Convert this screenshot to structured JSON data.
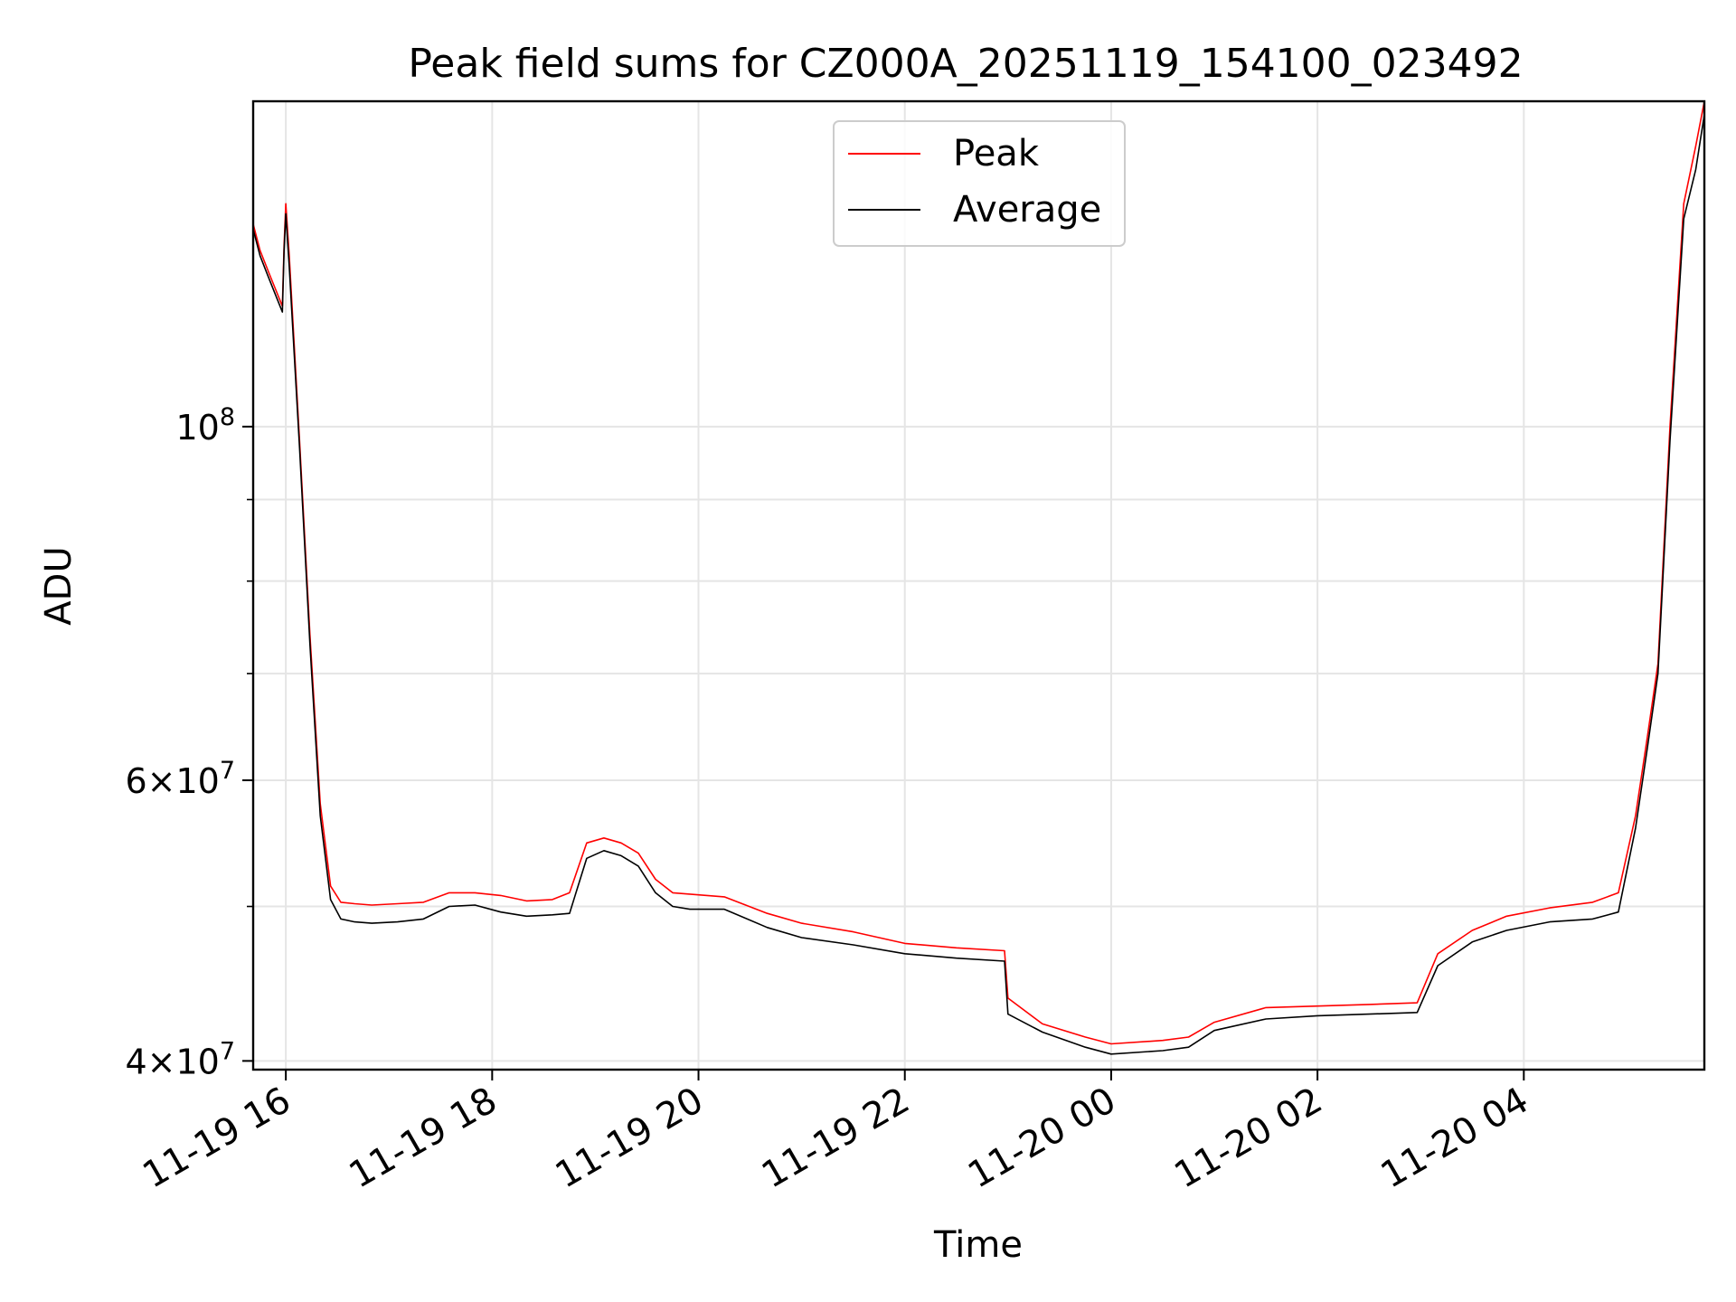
{
  "chart_data": {
    "type": "line",
    "title": "Peak field sums for CZ000A_20251119_154100_023492",
    "xlabel": "Time",
    "ylabel": "ADU",
    "y_scale": "log",
    "ylim": [
      39500000,
      160000000
    ],
    "xlim": [
      "2025-11-19 15:41",
      "2025-11-20 05:45"
    ],
    "grid": true,
    "legend_position": "upper center",
    "x_ticks": [
      {
        "t": "2025-11-19 16:00",
        "label": "11-19 16"
      },
      {
        "t": "2025-11-19 18:00",
        "label": "11-19 18"
      },
      {
        "t": "2025-11-19 20:00",
        "label": "11-19 20"
      },
      {
        "t": "2025-11-19 22:00",
        "label": "11-19 22"
      },
      {
        "t": "2025-11-20 00:00",
        "label": "11-20 00"
      },
      {
        "t": "2025-11-20 02:00",
        "label": "11-20 02"
      },
      {
        "t": "2025-11-20 04:00",
        "label": "11-20 04"
      }
    ],
    "y_ticks": [
      {
        "v": 40000000,
        "base": "4",
        "exp": "7"
      },
      {
        "v": 60000000,
        "base": "6",
        "exp": "7"
      },
      {
        "v": 100000000,
        "base": "",
        "exp": "8"
      }
    ],
    "y_minor_ticks": [
      50000000,
      70000000,
      80000000,
      90000000
    ],
    "series": [
      {
        "name": "Peak",
        "color": "#ff0000",
        "x": [
          "2025-11-19 15:41",
          "2025-11-19 15:45",
          "2025-11-19 15:50",
          "2025-11-19 15:58",
          "2025-11-19 15:59",
          "2025-11-19 16:00",
          "2025-11-19 16:02",
          "2025-11-19 16:08",
          "2025-11-19 16:14",
          "2025-11-19 16:20",
          "2025-11-19 16:26",
          "2025-11-19 16:32",
          "2025-11-19 16:40",
          "2025-11-19 16:50",
          "2025-11-19 17:05",
          "2025-11-19 17:20",
          "2025-11-19 17:35",
          "2025-11-19 17:50",
          "2025-11-19 18:05",
          "2025-11-19 18:20",
          "2025-11-19 18:35",
          "2025-11-19 18:45",
          "2025-11-19 18:55",
          "2025-11-19 19:05",
          "2025-11-19 19:15",
          "2025-11-19 19:25",
          "2025-11-19 19:35",
          "2025-11-19 19:45",
          "2025-11-19 19:55",
          "2025-11-19 20:15",
          "2025-11-19 20:40",
          "2025-11-19 21:00",
          "2025-11-19 21:30",
          "2025-11-19 22:00",
          "2025-11-19 22:30",
          "2025-11-19 22:58",
          "2025-11-19 23:00",
          "2025-11-19 23:20",
          "2025-11-19 23:45",
          "2025-11-20 00:00",
          "2025-11-20 00:30",
          "2025-11-20 00:45",
          "2025-11-20 01:00",
          "2025-11-20 01:30",
          "2025-11-20 02:00",
          "2025-11-20 02:30",
          "2025-11-20 02:58",
          "2025-11-20 03:10",
          "2025-11-20 03:30",
          "2025-11-20 03:50",
          "2025-11-20 04:15",
          "2025-11-20 04:40",
          "2025-11-20 04:55",
          "2025-11-20 05:05",
          "2025-11-20 05:12",
          "2025-11-20 05:18",
          "2025-11-20 05:25",
          "2025-11-20 05:33",
          "2025-11-20 05:40",
          "2025-11-20 05:45"
        ],
        "values": [
          134000000,
          129000000,
          125000000,
          119000000,
          130000000,
          138000000,
          128000000,
          98000000,
          74000000,
          58000000,
          51500000,
          50300000,
          50200000,
          50100000,
          50200000,
          50300000,
          51000000,
          51000000,
          50800000,
          50400000,
          50500000,
          51000000,
          54800000,
          55200000,
          54800000,
          54000000,
          52000000,
          51000000,
          50900000,
          50700000,
          49500000,
          48800000,
          48200000,
          47400000,
          47100000,
          46900000,
          43800000,
          42200000,
          41400000,
          41000000,
          41200000,
          41400000,
          42300000,
          43200000,
          43300000,
          43400000,
          43500000,
          46700000,
          48300000,
          49300000,
          49900000,
          50300000,
          51000000,
          57000000,
          64000000,
          71000000,
          100000000,
          138000000,
          150000000,
          160000000
        ]
      },
      {
        "name": "Average",
        "color": "#000000",
        "x": [
          "2025-11-19 15:41",
          "2025-11-19 15:45",
          "2025-11-19 15:50",
          "2025-11-19 15:58",
          "2025-11-19 15:59",
          "2025-11-19 16:00",
          "2025-11-19 16:02",
          "2025-11-19 16:08",
          "2025-11-19 16:14",
          "2025-11-19 16:20",
          "2025-11-19 16:26",
          "2025-11-19 16:32",
          "2025-11-19 16:40",
          "2025-11-19 16:50",
          "2025-11-19 17:05",
          "2025-11-19 17:20",
          "2025-11-19 17:35",
          "2025-11-19 17:50",
          "2025-11-19 18:05",
          "2025-11-19 18:20",
          "2025-11-19 18:35",
          "2025-11-19 18:45",
          "2025-11-19 18:55",
          "2025-11-19 19:05",
          "2025-11-19 19:15",
          "2025-11-19 19:25",
          "2025-11-19 19:35",
          "2025-11-19 19:45",
          "2025-11-19 19:55",
          "2025-11-19 20:15",
          "2025-11-19 20:40",
          "2025-11-19 21:00",
          "2025-11-19 21:30",
          "2025-11-19 22:00",
          "2025-11-19 22:30",
          "2025-11-19 22:58",
          "2025-11-19 23:00",
          "2025-11-19 23:20",
          "2025-11-19 23:45",
          "2025-11-20 00:00",
          "2025-11-20 00:30",
          "2025-11-20 00:45",
          "2025-11-20 01:00",
          "2025-11-20 01:30",
          "2025-11-20 02:00",
          "2025-11-20 02:30",
          "2025-11-20 02:58",
          "2025-11-20 03:10",
          "2025-11-20 03:30",
          "2025-11-20 03:50",
          "2025-11-20 04:15",
          "2025-11-20 04:40",
          "2025-11-20 04:55",
          "2025-11-20 05:05",
          "2025-11-20 05:12",
          "2025-11-20 05:18",
          "2025-11-20 05:25",
          "2025-11-20 05:33",
          "2025-11-20 05:40",
          "2025-11-20 05:45"
        ],
        "values": [
          133000000,
          128000000,
          124000000,
          118000000,
          129000000,
          136000000,
          126000000,
          97000000,
          73000000,
          57000000,
          50500000,
          49100000,
          48900000,
          48800000,
          48900000,
          49100000,
          50000000,
          50100000,
          49600000,
          49300000,
          49400000,
          49500000,
          53600000,
          54200000,
          53800000,
          53000000,
          51000000,
          50000000,
          49800000,
          49800000,
          48500000,
          47800000,
          47300000,
          46700000,
          46400000,
          46200000,
          42800000,
          41700000,
          40800000,
          40400000,
          40600000,
          40800000,
          41800000,
          42500000,
          42700000,
          42800000,
          42900000,
          45900000,
          47500000,
          48300000,
          48900000,
          49100000,
          49600000,
          56000000,
          63000000,
          70000000,
          98000000,
          135000000,
          145000000,
          157000000
        ]
      }
    ]
  }
}
